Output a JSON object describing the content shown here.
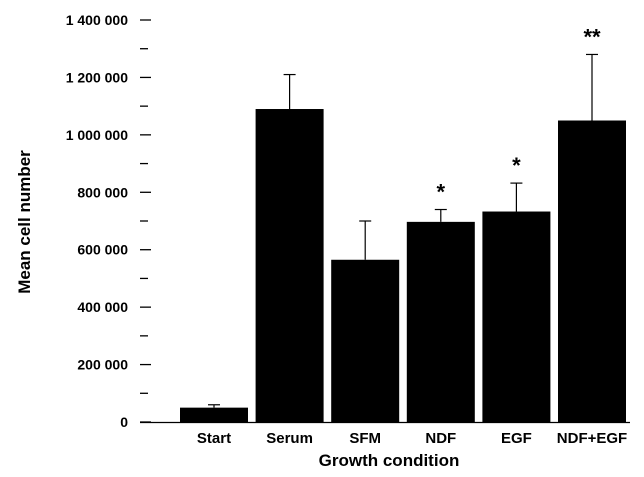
{
  "chart_data": {
    "type": "bar",
    "title": "",
    "xlabel": "Growth condition",
    "ylabel": "Mean cell number",
    "categories": [
      "Start",
      "Serum",
      "SFM",
      "NDF",
      "EGF",
      "NDF+EGF"
    ],
    "values": [
      50000,
      1090000,
      565000,
      697000,
      733000,
      1050000
    ],
    "error_upper": [
      60000,
      1210000,
      700000,
      740000,
      832000,
      1280000
    ],
    "significance": [
      "",
      "",
      "",
      "*",
      "*",
      "**"
    ],
    "ylim": [
      0,
      1400000
    ],
    "yticks": [
      0,
      200000,
      400000,
      600000,
      800000,
      1000000,
      1200000,
      1400000
    ],
    "ytick_labels": [
      "0",
      "200 000",
      "400 000",
      "600 000",
      "800 000",
      "1 000 000",
      "1 200 000",
      "1 400 000"
    ],
    "bar_color": "#000000",
    "grid": false,
    "legend": "none"
  }
}
